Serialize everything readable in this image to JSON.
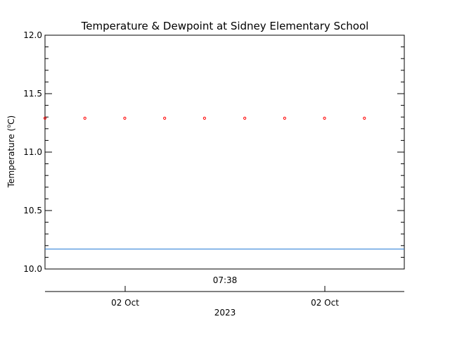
{
  "chart_data": {
    "type": "scatter",
    "title": "Temperature & Dewpoint at Sidney Elementary School",
    "ylabel_main": "Temperature (",
    "ylabel_unit": "C)",
    "ylim": [
      10.0,
      12.0
    ],
    "yticks": [
      "10.0",
      "10.5",
      "11.0",
      "11.5",
      "12.0"
    ],
    "time_label": "07:38",
    "date_labels": [
      "02 Oct",
      "02 Oct"
    ],
    "year_label": "2023",
    "grid": false,
    "series": [
      {
        "color": "#ff0000",
        "marker": "circle",
        "x_fraction": [
          0.0,
          0.111,
          0.222,
          0.333,
          0.444,
          0.556,
          0.667,
          0.778,
          0.889
        ],
        "values": [
          11.29,
          11.29,
          11.29,
          11.29,
          11.29,
          11.29,
          11.29,
          11.29,
          11.29
        ]
      },
      {
        "color": "#1f77d4",
        "marker": "line",
        "values": [
          10.17,
          10.17
        ]
      }
    ]
  }
}
